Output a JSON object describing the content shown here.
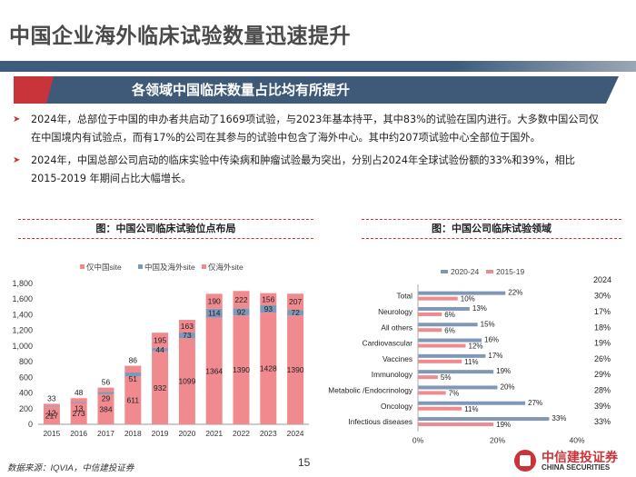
{
  "page_title": "中国企业海外临床试验数量迅速提升",
  "section_header": "各领域中国临床数量占比均有所提升",
  "bullets": [
    "2024年，总部位于中国的申办者共启动了1669项试验，与2023年基本持平，其中83%的试验在国内进行。大多数中国公司仅在中国境内有试验点，而有17%的公司在其参与的试验中包含了海外中心。其中约207项试验中心全部位于国外。",
    "2024年，中国总部公司启动的临床实验中传染病和肿瘤试验最为突出，分别占2024年全球试验份额的33%和39%，相比2015-2019 年期间占比大幅增长。"
  ],
  "colors": {
    "navy": "#3e5a78",
    "red": "#c9343a",
    "pink": "#f08a8f",
    "blue": "#7f98b8"
  },
  "chart_data": [
    {
      "type": "bar",
      "stacked": true,
      "title": "图：中国公司临床试验位点布局",
      "categories": [
        "2015",
        "2016",
        "2017",
        "2018",
        "2019",
        "2020",
        "2021",
        "2022",
        "2023",
        "2024"
      ],
      "series": [
        {
          "name": "仅中国site",
          "values": [
            217,
            273,
            384,
            611,
            932,
            1099,
            1364,
            1390,
            1428,
            1390
          ]
        },
        {
          "name": "中国及海外site",
          "values": [
            12,
            13,
            29,
            51,
            44,
            73,
            114,
            92,
            93,
            72
          ]
        },
        {
          "name": "仅海外site",
          "values": [
            33,
            48,
            56,
            86,
            195,
            163,
            190,
            222,
            156,
            207
          ]
        }
      ],
      "yticks": [
        "0",
        "200",
        "400",
        "600",
        "800",
        "1,000",
        "1,200",
        "1,400",
        "1,600",
        "1,800"
      ],
      "ylim": [
        0,
        1800
      ]
    },
    {
      "type": "bar",
      "orientation": "horizontal",
      "title": "图：中国公司临床试验领域",
      "categories": [
        "Total",
        "Neurology",
        "All others",
        "Cardiovascular",
        "Vaccines",
        "Immunology",
        "Metabolic /Endocrinology",
        "Oncology",
        "Infectious diseases"
      ],
      "series": [
        {
          "name": "2020-24",
          "values": [
            22,
            13,
            15,
            16,
            17,
            19,
            20,
            27,
            33
          ],
          "labels": [
            "22%",
            "13%",
            "15%",
            "16%",
            "17%",
            "19%",
            "20%",
            "27%",
            "33%"
          ]
        },
        {
          "name": "2015-19",
          "values": [
            10,
            6,
            6,
            12,
            11,
            5,
            7,
            11,
            19
          ],
          "labels": [
            "10%",
            "6%",
            "6%",
            "12%",
            "11%",
            "5%",
            "7%",
            "11%",
            "19%"
          ]
        }
      ],
      "xticks": [
        "0%",
        "20%",
        "40%"
      ],
      "xlim": [
        0,
        40
      ],
      "side_column": {
        "header": "2024",
        "values": [
          "30%",
          "17%",
          "18%",
          "19%",
          "26%",
          "29%",
          "28%",
          "39%",
          "33%"
        ]
      }
    }
  ],
  "footer": {
    "source": "数据来源：IQVIA，中信建投证券",
    "page_number": "15",
    "logo_cn": "中信建投证券",
    "logo_en": "CHINA SECURITIES"
  }
}
